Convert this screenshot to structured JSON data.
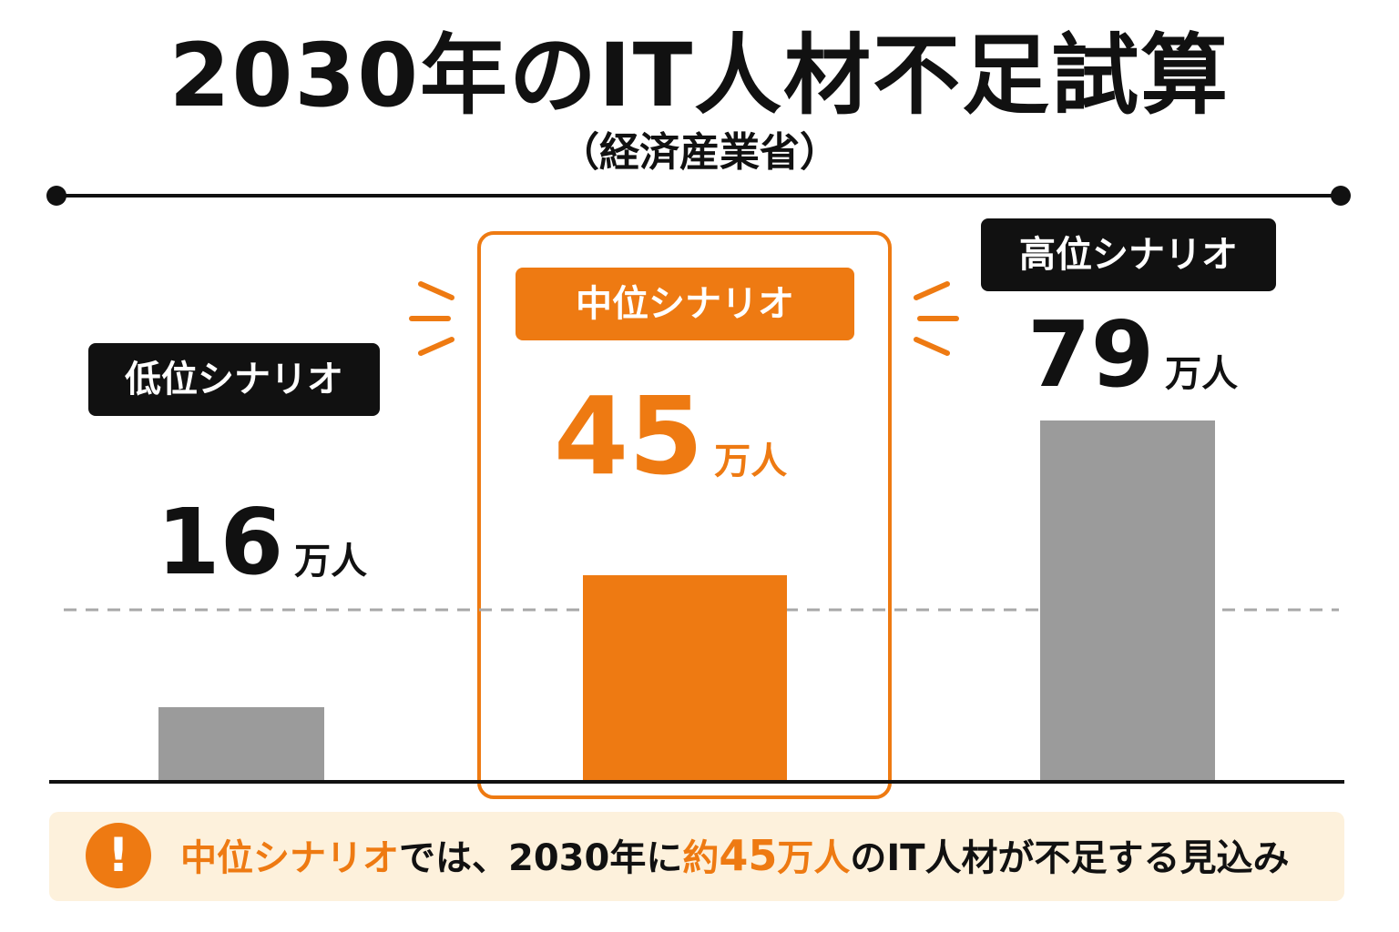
{
  "title": "2030年のIT人材不足試算",
  "subtitle": "（経済産業省）",
  "colors": {
    "highlight": "#ee7a12",
    "bar": "#9b9b9b",
    "label_bg": "#111111",
    "note_bg": "#fdf1dc"
  },
  "chart_data": {
    "type": "bar",
    "categories": [
      "低位シナリオ",
      "中位シナリオ",
      "高位シナリオ"
    ],
    "values": [
      16,
      45,
      79
    ],
    "unit": "万人",
    "highlighted_category": "中位シナリオ",
    "value_labels": [
      "16",
      "45",
      "79"
    ],
    "grid": false,
    "reference_line": "dashed"
  },
  "note": {
    "icon": "exclamation-icon",
    "highlight_phrase": "中位シナリオ",
    "text_1": "では、2030年に",
    "approx_prefix": "約",
    "approx_value": "45",
    "approx_unit": "万人",
    "text_2": "のIT人材が不足する見込み"
  }
}
